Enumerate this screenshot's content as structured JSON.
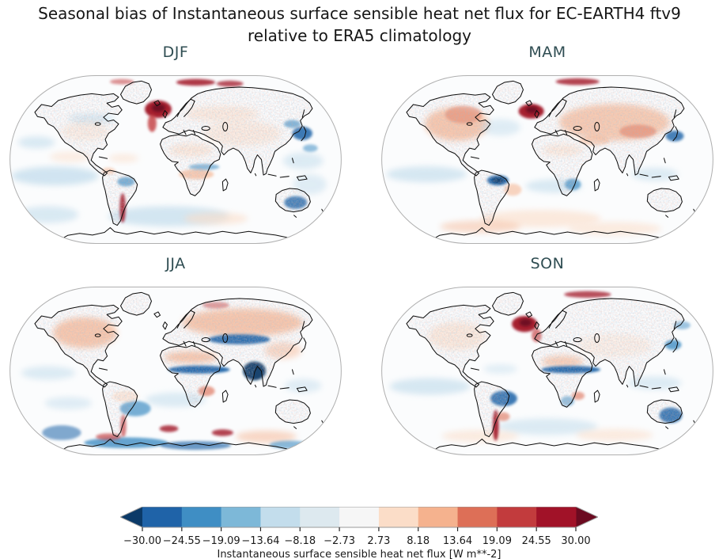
{
  "figure": {
    "title_line1": "Seasonal bias of Instantaneous surface sensible heat net flux for EC-EARTH4 ftv9",
    "title_line2": "relative to ERA5 climatology"
  },
  "chart_data": {
    "type": "heatmap",
    "subtype": "seasonal_global_bias_maps",
    "projection": "Robinson",
    "title": "Seasonal bias of Instantaneous surface sensible heat net flux for EC-EARTH4 ftv9 relative to ERA5 climatology",
    "variable": "Instantaneous surface sensible heat net flux",
    "units": "W m**-2",
    "model": "EC-EARTH4 ftv9",
    "reference": "ERA5 climatology",
    "layout": "2x2 panels with shared horizontal colorbar at bottom",
    "panels": [
      {
        "label": "DJF",
        "notable_features": "Strong positive bias (dark red) in the North Atlantic south of Greenland and along the Arctic edge; negative bias (dark blue) over Japan/NW Pacific and Australia; positive streak along the Andes; weak blue band across central Africa."
      },
      {
        "label": "MAM",
        "notable_features": "Widespread positive bias over North America and Eurasia; strong negative (dark navy) patch over northern South America; dark red North Atlantic; pale red bands in the Southern Ocean."
      },
      {
        "label": "JJA",
        "notable_features": "Positive bias over northern continents; strong negative (dark blue) bands across the Sahel and central Asia; dark blue over India; mixed strong red/blue biases in the Southern Ocean and near Antarctica."
      },
      {
        "label": "SON",
        "notable_features": "Dark red Labrador Sea / North Atlantic; negative Sahel band and Amazon patch; strong positive streak along the southern Andes; negative bias over eastern Australia and Japan."
      }
    ],
    "colorbar": {
      "label": "Instantaneous surface sensible heat net flux [W m**-2]",
      "vmin": -30,
      "vmax": 30,
      "tick_labels": [
        "−30.00",
        "−24.55",
        "−19.09",
        "−13.64",
        "−8.18",
        "−2.73",
        "2.73",
        "8.18",
        "13.64",
        "19.09",
        "24.55",
        "30.00"
      ],
      "tick_values": [
        -30,
        -24.55,
        -19.09,
        -13.64,
        -8.18,
        -2.73,
        2.73,
        8.18,
        13.64,
        19.09,
        24.55,
        30
      ],
      "segment_colors": [
        "#1f63a8",
        "#3f8ec4",
        "#7db8d8",
        "#c3ddec",
        "#dde9ef",
        "#f6f6f6",
        "#fbddc8",
        "#f5b28e",
        "#dd6f57",
        "#c23b3d",
        "#a11228"
      ],
      "under_arrow_color": "#0b3a68",
      "over_arrow_color": "#6b0a20",
      "colormap": "RdBu_r (discrete, 11 levels, extended both ends)"
    },
    "styles": {
      "panel_title_color": "#2F4D52",
      "title_color": "#161616",
      "coastline_color": "#0d0d0d",
      "map_outline_color": "#b0b0b0",
      "map_background": "#fbfcfd"
    }
  }
}
